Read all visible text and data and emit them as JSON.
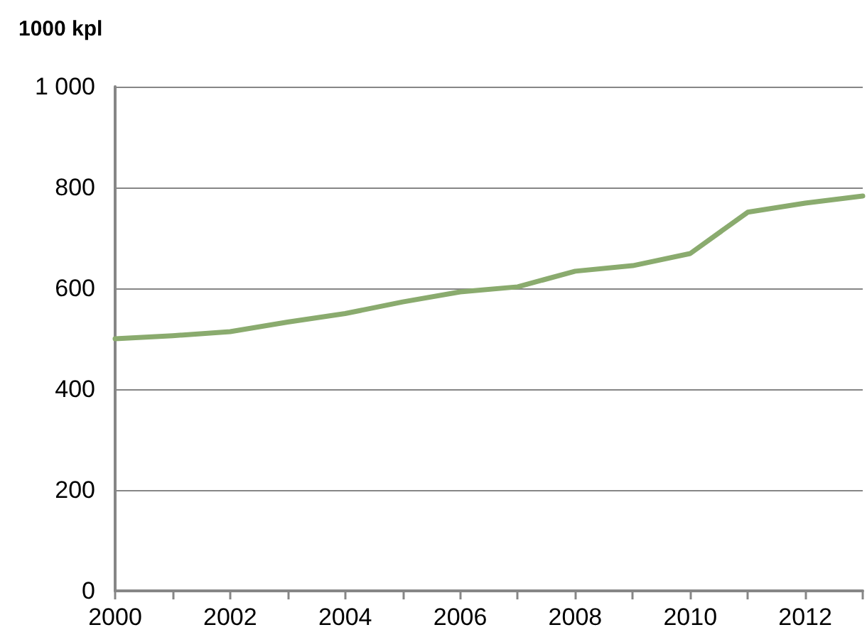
{
  "chart_data": {
    "type": "line",
    "ylabel": "1000 kpl",
    "x": [
      2000,
      2001,
      2002,
      2003,
      2004,
      2005,
      2006,
      2007,
      2008,
      2009,
      2010,
      2011,
      2012,
      2013
    ],
    "series": [
      {
        "color": "#8aab6e",
        "values": [
          500,
          506,
          514,
          533,
          550,
          573,
          593,
          603,
          634,
          645,
          669,
          751,
          769,
          783
        ]
      }
    ],
    "xlim": [
      2000,
      2013
    ],
    "xticks": [
      2000,
      {
        "value": 2001,
        "label": null
      },
      2002,
      {
        "value": 2003,
        "label": null
      },
      2004,
      {
        "value": 2005,
        "label": null
      },
      2006,
      {
        "value": 2007,
        "label": null
      },
      2008,
      {
        "value": 2009,
        "label": null
      },
      2010,
      {
        "value": 2011,
        "label": null
      },
      2012,
      {
        "value": 2013,
        "label": null
      }
    ],
    "ylim": [
      0,
      1000
    ],
    "yticks": [
      0,
      200,
      400,
      600,
      800,
      {
        "value": 1000,
        "label": "1 000"
      }
    ],
    "grid": "y",
    "marker": "none",
    "line_style": "solid"
  }
}
